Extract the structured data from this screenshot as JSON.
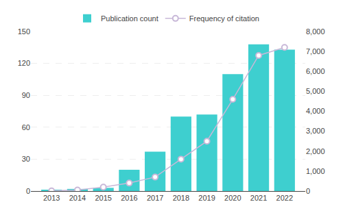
{
  "chart_data": {
    "type": "bar",
    "x": [
      2013,
      2014,
      2015,
      2016,
      2017,
      2018,
      2019,
      2020,
      2021,
      2022
    ],
    "xlim": [
      2012.2,
      2022.8
    ],
    "xticks": [
      2013,
      2014,
      2015,
      2016,
      2017,
      2018,
      2019,
      2020,
      2021,
      2022
    ],
    "ylim": [
      0,
      150
    ],
    "yticks": [
      0,
      30,
      60,
      90,
      120,
      150
    ],
    "y2lim": [
      0,
      8000
    ],
    "y2ticks": [
      0,
      {
        "value": 1000,
        "label": "1,000"
      },
      {
        "value": 2000,
        "label": "2,000"
      },
      {
        "value": 3000,
        "label": "3,000"
      },
      {
        "value": 4000,
        "label": "4,000"
      },
      {
        "value": 5000,
        "label": "5,000"
      },
      {
        "value": 6000,
        "label": "6,000"
      },
      {
        "value": 7000,
        "label": "7,000"
      },
      {
        "value": 8000,
        "label": "8,000"
      }
    ],
    "grid": true,
    "legend": "top",
    "series": [
      {
        "name": "Publication count",
        "type": "bar",
        "color": "#3ECFCF",
        "values": [
          1,
          2,
          3,
          20,
          37,
          70,
          72,
          110,
          138,
          133
        ]
      },
      {
        "name": "Frequency of citation",
        "type": "line",
        "axis": "y2",
        "color": "#c8b8d8",
        "marker": "circle",
        "values": [
          5,
          50,
          200,
          400,
          700,
          1600,
          2500,
          4600,
          6800,
          7200
        ]
      }
    ]
  }
}
